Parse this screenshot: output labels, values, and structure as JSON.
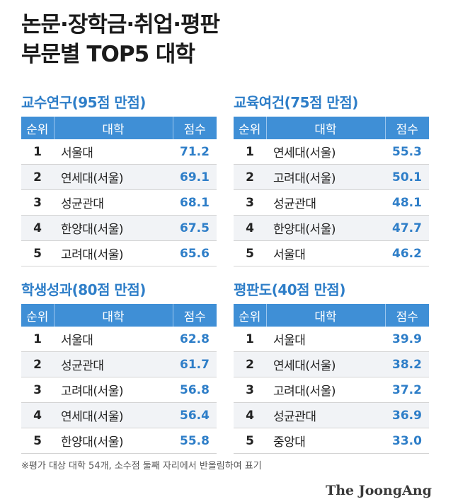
{
  "title": {
    "line1": "논문·장학금·취업·평판",
    "line2": "부문별 TOP5 대학"
  },
  "columns": {
    "rank": "순위",
    "university": "대학",
    "score": "점수"
  },
  "chart_data": [
    {
      "type": "table",
      "title": "교수연구(95점 만점)",
      "rows": [
        {
          "rank": "1",
          "university": "서울대",
          "score": 71.2
        },
        {
          "rank": "2",
          "university": "연세대(서울)",
          "score": 69.1
        },
        {
          "rank": "3",
          "university": "성균관대",
          "score": 68.1
        },
        {
          "rank": "4",
          "university": "한양대(서울)",
          "score": 67.5
        },
        {
          "rank": "5",
          "university": "고려대(서울)",
          "score": 65.6
        }
      ]
    },
    {
      "type": "table",
      "title": "교육여건(75점 만점)",
      "rows": [
        {
          "rank": "1",
          "university": "연세대(서울)",
          "score": 55.3
        },
        {
          "rank": "2",
          "university": "고려대(서울)",
          "score": 50.1
        },
        {
          "rank": "3",
          "university": "성균관대",
          "score": 48.1
        },
        {
          "rank": "4",
          "university": "한양대(서울)",
          "score": 47.7
        },
        {
          "rank": "5",
          "university": "서울대",
          "score": 46.2
        }
      ]
    },
    {
      "type": "table",
      "title": "학생성과(80점 만점)",
      "rows": [
        {
          "rank": "1",
          "university": "서울대",
          "score": 62.8
        },
        {
          "rank": "2",
          "university": "성균관대",
          "score": 61.7
        },
        {
          "rank": "3",
          "university": "고려대(서울)",
          "score": 56.8
        },
        {
          "rank": "4",
          "university": "연세대(서울)",
          "score": 56.4
        },
        {
          "rank": "5",
          "university": "한양대(서울)",
          "score": 55.8
        }
      ]
    },
    {
      "type": "table",
      "title": "평판도(40점 만점)",
      "rows": [
        {
          "rank": "1",
          "university": "서울대",
          "score": 39.9
        },
        {
          "rank": "2",
          "university": "연세대(서울)",
          "score": 38.2
        },
        {
          "rank": "3",
          "university": "고려대(서울)",
          "score": 37.2
        },
        {
          "rank": "4",
          "university": "성균관대",
          "score": 36.9
        },
        {
          "rank": "5",
          "university": "중앙대",
          "score": 33.0
        }
      ]
    }
  ],
  "footnote": "※평가 대상 대학 54개, 소수점 둘째 자리에서 반올림하여 표기",
  "source": "The JoongAng",
  "colors": {
    "accent": "#2e7ec8",
    "header_bg": "#3f8fd6",
    "row_alt": "#f1f3f6"
  }
}
